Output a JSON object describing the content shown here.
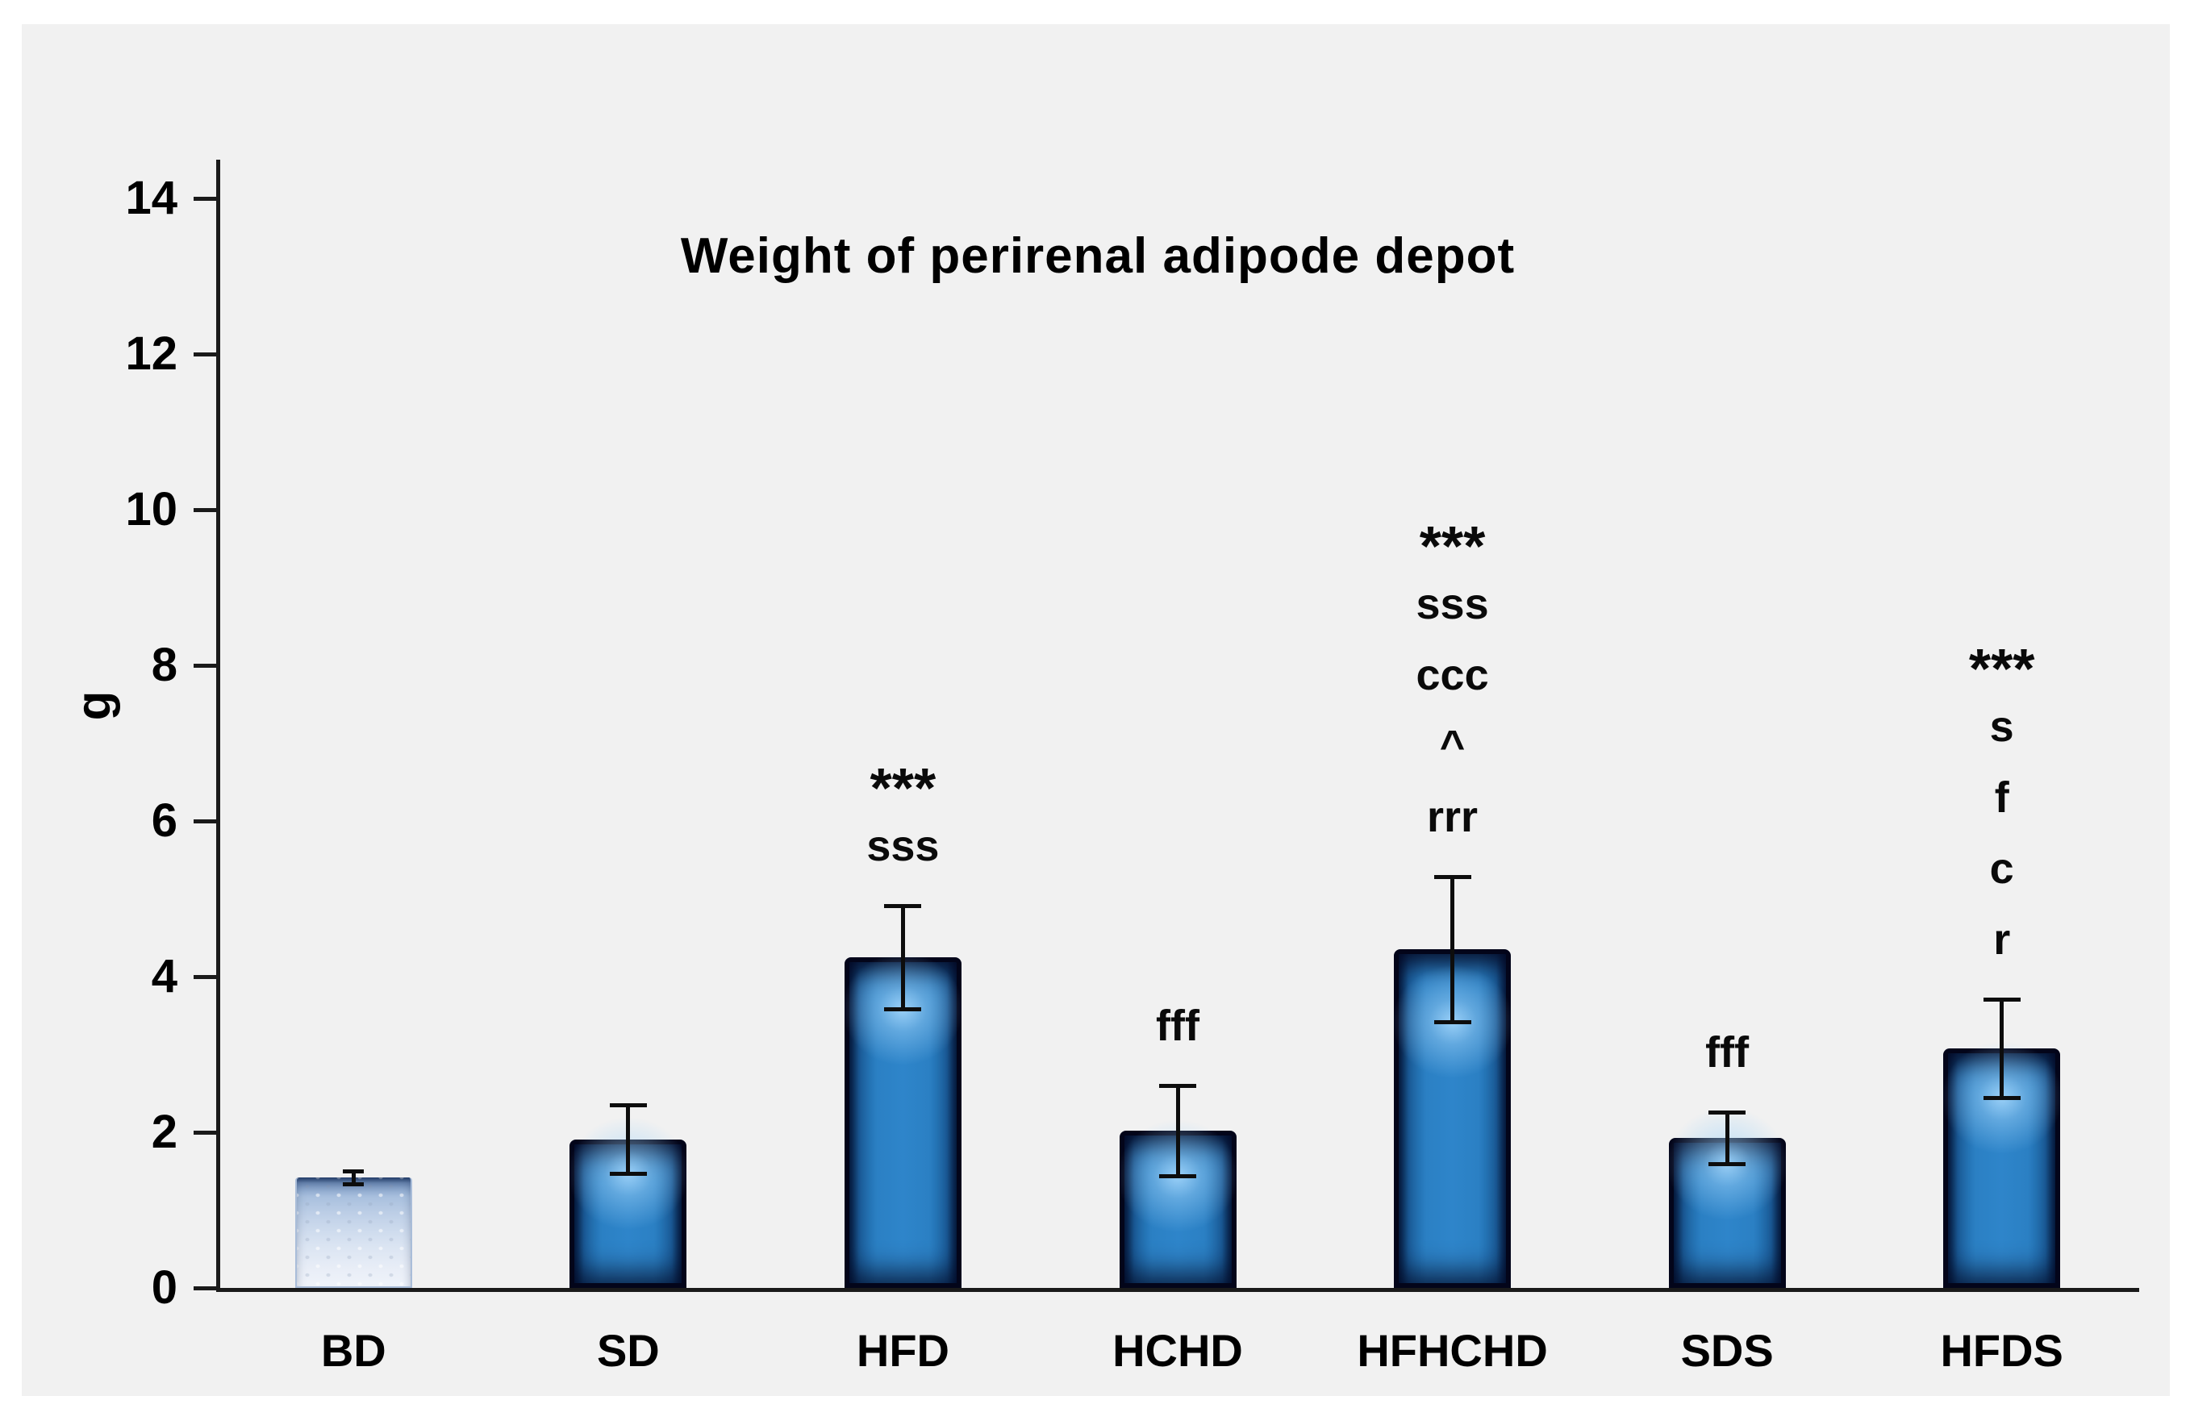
{
  "figure": {
    "title": "Weight of perirenal adipode depot",
    "y_axis_label": "g"
  },
  "colors": {
    "page_background": "#ffffff",
    "panel_background": "#f1f1f1",
    "bar_fill": "#2b80c4",
    "bar_fill_edge": "#0a2a55",
    "bar_border": "#03051a",
    "bd_bar_top": "#7d9cc7",
    "bd_bar_bottom": "#eff3fa",
    "axis": "#1a1a1a",
    "error_bar": "#0d0d0d",
    "text": "#000000"
  },
  "chart_data": {
    "type": "bar",
    "title": "Weight of perirenal adipode depot",
    "xlabel": "",
    "ylabel": "g",
    "ylim": [
      0,
      15
    ],
    "yticks": [
      0,
      2,
      4,
      6,
      8,
      10,
      12,
      14
    ],
    "grid": false,
    "legend": false,
    "categories": [
      "BD",
      "SD",
      "HFD",
      "HCHD",
      "HFHCHD",
      "SDS",
      "HFDS"
    ],
    "values": [
      1.42,
      1.91,
      4.25,
      2.02,
      4.35,
      1.93,
      3.08
    ],
    "errors": [
      0.08,
      0.44,
      0.66,
      0.58,
      0.93,
      0.33,
      0.63
    ],
    "bar_styles": [
      "light",
      "solid",
      "solid",
      "solid",
      "solid",
      "solid",
      "solid"
    ],
    "annotations": [
      [],
      [],
      [
        "***",
        "sss"
      ],
      [
        "fff"
      ],
      [
        "***",
        "sss",
        "ccc",
        "^",
        "rrr"
      ],
      [
        "fff"
      ],
      [
        "***",
        "s",
        "f",
        "c",
        "r"
      ]
    ]
  }
}
